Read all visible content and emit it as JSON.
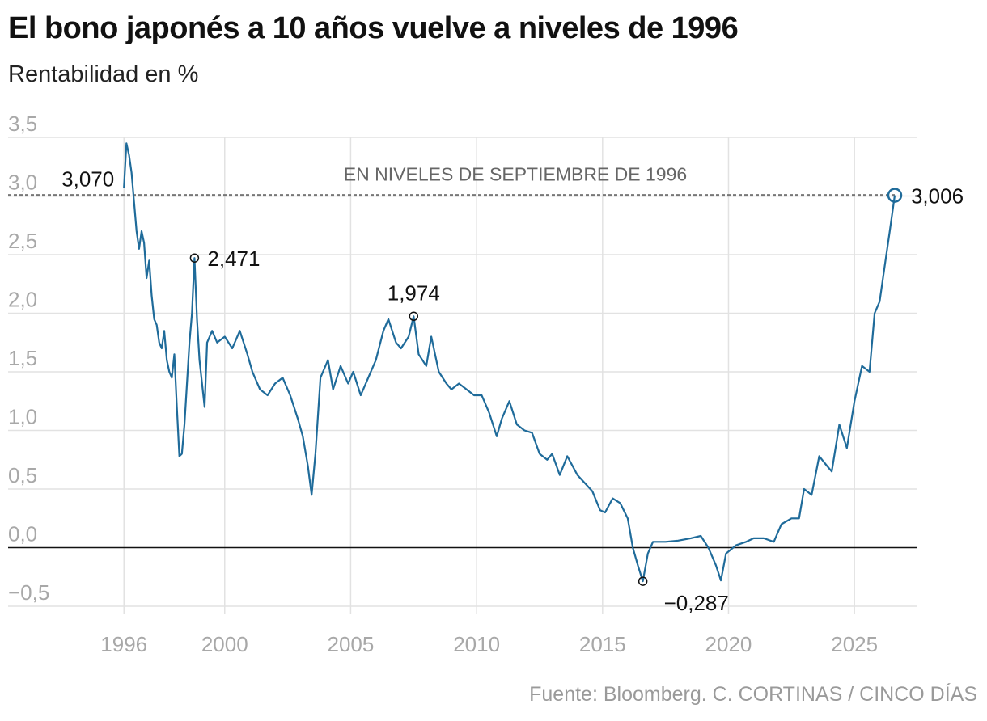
{
  "header": {
    "title": "El bono japonés a 10 años vuelve a niveles de 1996",
    "subtitle": "Rentabilidad en %"
  },
  "footer": {
    "source": "Fuente: Bloomberg. C. CORTINAS / CINCO DÍAS"
  },
  "chart_data": {
    "type": "line",
    "title": "El bono japonés a 10 años vuelve a niveles de 1996",
    "subtitle": "Rentabilidad en %",
    "xlabel": "",
    "ylabel": "",
    "xlim": [
      1991.4,
      2027.5
    ],
    "ylim": [
      -0.5,
      3.5
    ],
    "yticks": [
      -0.5,
      0.0,
      0.5,
      1.0,
      1.5,
      2.0,
      2.5,
      3.0,
      3.5
    ],
    "ytick_labels": [
      "−0,5",
      "0,0",
      "0,5",
      "1,0",
      "1,5",
      "2,0",
      "2,5",
      "3,0",
      "3,5"
    ],
    "xticks": [
      1996,
      2000,
      2005,
      2010,
      2015,
      2020,
      2025
    ],
    "xtick_labels": [
      "1996",
      "2000",
      "2005",
      "2010",
      "2015",
      "2020",
      "2025"
    ],
    "grid": true,
    "line_color": "#1f6b9a",
    "reference_line": {
      "value": 3.006,
      "label": "EN NIVELES DE SEPTIEMBRE DE 1996"
    },
    "annotations": [
      {
        "x": 1996.0,
        "y": 3.07,
        "label": "3,070"
      },
      {
        "x": 1998.8,
        "y": 2.471,
        "label": "2,471"
      },
      {
        "x": 2007.5,
        "y": 1.974,
        "label": "1,974"
      },
      {
        "x": 2016.6,
        "y": -0.287,
        "label": "−0,287"
      },
      {
        "x": 2026.6,
        "y": 3.006,
        "label": "3,006"
      }
    ],
    "series": [
      {
        "x": [
          1996.0,
          1996.1,
          1996.2,
          1996.3,
          1996.4,
          1996.5,
          1996.6,
          1996.7,
          1996.8,
          1996.9,
          1997.0,
          1997.1,
          1997.2,
          1997.3,
          1997.4,
          1997.5,
          1997.6,
          1997.7,
          1997.8,
          1997.9,
          1998.0,
          1998.1,
          1998.2,
          1998.3,
          1998.4,
          1998.5,
          1998.6,
          1998.7,
          1998.8,
          1998.9,
          1999.0,
          1999.2,
          1999.3,
          1999.5,
          1999.7,
          2000.0,
          2000.3,
          2000.6,
          2000.9,
          2001.1,
          2001.4,
          2001.7,
          2002.0,
          2002.3,
          2002.6,
          2002.9,
          2003.1,
          2003.3,
          2003.45,
          2003.6,
          2003.8,
          2004.1,
          2004.3,
          2004.6,
          2004.9,
          2005.1,
          2005.4,
          2005.7,
          2006.0,
          2006.3,
          2006.5,
          2006.8,
          2007.0,
          2007.3,
          2007.5,
          2007.7,
          2008.0,
          2008.2,
          2008.5,
          2008.8,
          2009.0,
          2009.3,
          2009.6,
          2009.9,
          2010.2,
          2010.5,
          2010.8,
          2011.0,
          2011.3,
          2011.6,
          2011.9,
          2012.2,
          2012.5,
          2012.8,
          2013.0,
          2013.3,
          2013.6,
          2014.0,
          2014.3,
          2014.6,
          2014.9,
          2015.1,
          2015.4,
          2015.7,
          2016.0,
          2016.2,
          2016.4,
          2016.6,
          2016.8,
          2017.0,
          2017.5,
          2018.0,
          2018.5,
          2018.9,
          2019.2,
          2019.5,
          2019.7,
          2019.9,
          2020.3,
          2020.7,
          2021.0,
          2021.4,
          2021.8,
          2022.1,
          2022.5,
          2022.8,
          2023.0,
          2023.3,
          2023.6,
          2023.9,
          2024.1,
          2024.4,
          2024.7,
          2025.0,
          2025.3,
          2025.6,
          2025.8,
          2026.0,
          2026.2,
          2026.4,
          2026.6
        ],
        "y": [
          3.07,
          3.45,
          3.35,
          3.2,
          2.95,
          2.7,
          2.55,
          2.7,
          2.6,
          2.3,
          2.45,
          2.15,
          1.95,
          1.9,
          1.75,
          1.7,
          1.85,
          1.6,
          1.5,
          1.45,
          1.65,
          1.2,
          0.78,
          0.8,
          1.05,
          1.4,
          1.75,
          2.0,
          2.471,
          1.95,
          1.6,
          1.2,
          1.75,
          1.85,
          1.75,
          1.8,
          1.7,
          1.85,
          1.65,
          1.5,
          1.35,
          1.3,
          1.4,
          1.45,
          1.3,
          1.1,
          0.95,
          0.7,
          0.45,
          0.8,
          1.45,
          1.6,
          1.35,
          1.55,
          1.4,
          1.5,
          1.3,
          1.45,
          1.6,
          1.85,
          1.95,
          1.75,
          1.7,
          1.8,
          1.974,
          1.65,
          1.55,
          1.8,
          1.5,
          1.4,
          1.35,
          1.4,
          1.35,
          1.3,
          1.3,
          1.15,
          0.95,
          1.1,
          1.25,
          1.05,
          1.0,
          0.98,
          0.8,
          0.75,
          0.8,
          0.62,
          0.78,
          0.62,
          0.55,
          0.48,
          0.32,
          0.3,
          0.42,
          0.38,
          0.25,
          0.0,
          -0.15,
          -0.287,
          -0.05,
          0.05,
          0.05,
          0.06,
          0.08,
          0.1,
          0.0,
          -0.15,
          -0.28,
          -0.05,
          0.02,
          0.05,
          0.08,
          0.08,
          0.05,
          0.2,
          0.25,
          0.25,
          0.5,
          0.45,
          0.78,
          0.7,
          0.65,
          1.05,
          0.85,
          1.25,
          1.55,
          1.5,
          2.0,
          2.1,
          2.4,
          2.7,
          3.006
        ]
      }
    ]
  }
}
